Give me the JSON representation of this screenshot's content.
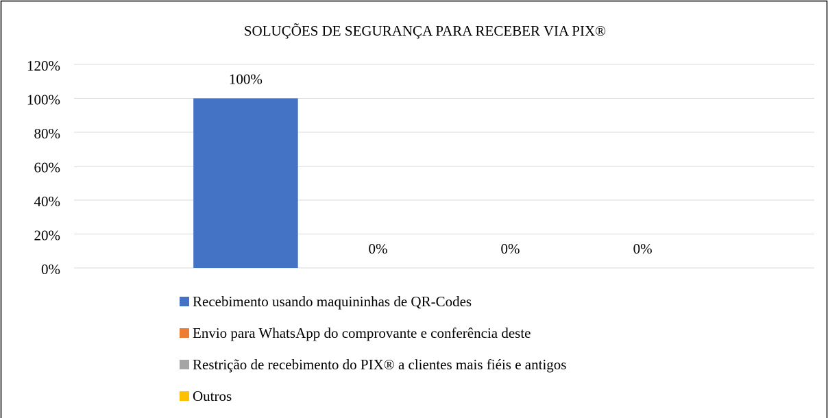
{
  "chart_data": {
    "type": "bar",
    "title": "SOLUÇÕES DE SEGURANÇA PARA RECEBER VIA PIX®",
    "categories": [
      null
    ],
    "series": [
      {
        "name": "Recebimento usando maquininhas de QR-Codes",
        "color": "#4472c4",
        "values": [
          100
        ],
        "value_labels": [
          "100%"
        ]
      },
      {
        "name": "Envio para WhatsApp do comprovante e conferência deste",
        "color": "#ed7d31",
        "values": [
          0
        ],
        "value_labels": [
          "0%"
        ]
      },
      {
        "name": "Restrição de recebimento do PIX® a clientes mais fiéis e antigos",
        "color": "#a5a5a5",
        "values": [
          0
        ],
        "value_labels": [
          "0%"
        ]
      },
      {
        "name": "Outros",
        "color": "#ffc000",
        "values": [
          0
        ],
        "value_labels": [
          "0%"
        ]
      }
    ],
    "ylim": [
      0,
      120
    ],
    "yticks": [
      {
        "value": 0,
        "label": "0%"
      },
      {
        "value": 20,
        "label": "20%"
      },
      {
        "value": 40,
        "label": "40%"
      },
      {
        "value": 60,
        "label": "60%"
      },
      {
        "value": 80,
        "label": "80%"
      },
      {
        "value": 100,
        "label": "100%"
      },
      {
        "value": 120,
        "label": "120%"
      }
    ],
    "grid": true,
    "legend": "bottom"
  }
}
